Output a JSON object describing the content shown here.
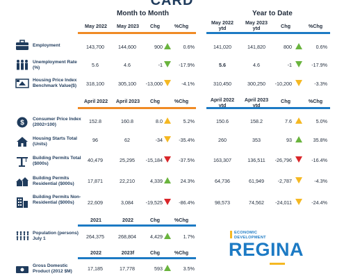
{
  "title": "CARD",
  "month_group": "Month to Month",
  "ytd_group": "Year to Date",
  "headers": {
    "month_sec1": [
      "May 2022",
      "May 2023",
      "Chg",
      "%Chg"
    ],
    "ytd_sec1": [
      "May 2022 ytd",
      "May 2023 ytd",
      "Chg",
      "%Chg"
    ],
    "month_sec2": [
      "April 2022",
      "April 2023",
      "Chg",
      "%Chg"
    ],
    "ytd_sec2": [
      "April 2022 ytd",
      "April 2023 ytd",
      "Chg",
      "%Chg"
    ],
    "sec3": [
      "2021",
      "2022",
      "Chg",
      "%Chg"
    ],
    "sec4": [
      "2022",
      "2023f",
      "Chg",
      "%Chg"
    ]
  },
  "rows": [
    {
      "label": "Employment",
      "icon": "briefcase-icon",
      "m": [
        "143,700",
        "144,600",
        "900",
        "0.6%"
      ],
      "m_trend": "up-green",
      "y": [
        "141,020",
        "141,820",
        "800",
        "0.6%"
      ],
      "y_trend": "up-green"
    },
    {
      "label": "Unemployment Rate (%)",
      "icon": "people-icon",
      "m": [
        "5.6",
        "4.6",
        "-1",
        "-17.9%"
      ],
      "m_trend": "down-green",
      "y": [
        "5.6",
        "4.6",
        "-1",
        "-17.9%"
      ],
      "y_trend": "down-green"
    },
    {
      "label": "Housing Price Index Benchmark Value($)",
      "icon": "house-price-icon",
      "m": [
        "318,100",
        "305,100",
        "-13,000",
        "-4.1%"
      ],
      "m_trend": "down-yellow",
      "y": [
        "310,450",
        "300,250",
        "-10,200",
        "-3.3%"
      ],
      "y_trend": "down-yellow"
    },
    {
      "label": "Consumer Price Index (2002=100)",
      "icon": "dollar-icon",
      "m": [
        "152.8",
        "160.8",
        "8.0",
        "5.2%"
      ],
      "m_trend": "up-yellow",
      "y": [
        "150.6",
        "158.2",
        "7.6",
        "5.0%"
      ],
      "y_trend": "up-yellow"
    },
    {
      "label": "Housing Starts Total (Units)",
      "icon": "house-icon",
      "m": [
        "96",
        "62",
        "-34",
        "-35.4%"
      ],
      "m_trend": "down-yellow",
      "y": [
        "260",
        "353",
        "93",
        "35.8%"
      ],
      "y_trend": "up-green"
    },
    {
      "label": "Building Permits Total ($000s)",
      "icon": "crane-icon",
      "m": [
        "40,479",
        "25,295",
        "-15,184",
        "-37.5%"
      ],
      "m_trend": "down-red",
      "y": [
        "163,307",
        "136,511",
        "-26,796",
        "-16.4%"
      ],
      "y_trend": "down-red"
    },
    {
      "label": "Building Permits Residential ($000s)",
      "icon": "homes-icon",
      "m": [
        "17,871",
        "22,210",
        "4,339",
        "24.3%"
      ],
      "m_trend": "up-green",
      "y": [
        "64,736",
        "61,949",
        "-2,787",
        "-4.3%"
      ],
      "y_trend": "down-yellow"
    },
    {
      "label": "Building Permits Non-Residential ($000s)",
      "icon": "office-building-icon",
      "m": [
        "22,609",
        "3,084",
        "-19,525",
        "-86.4%"
      ],
      "m_trend": "down-red",
      "y": [
        "98,573",
        "74,562",
        "-24,011",
        "-24.4%"
      ],
      "y_trend": "down-yellow"
    },
    {
      "label": "Population (persons) July 1",
      "icon": "population-icon",
      "m": [
        "264,375",
        "268,804",
        "4,429",
        "1.7%"
      ],
      "m_trend": "up-green"
    },
    {
      "label": "Gross Domestic Product (2012 $M)",
      "icon": "money-icon",
      "m": [
        "17,185",
        "17,778",
        "593",
        "3.5%"
      ],
      "m_trend": "up-green"
    }
  ],
  "logo": {
    "line1": "ECONOMIC",
    "line2": "DEVELOPMENT",
    "name": "REGINA"
  },
  "colors": {
    "orange": "#f08a24",
    "blue": "#1c7ac4",
    "green": "#6ab43e",
    "yellow": "#f5b822",
    "red": "#d9262a"
  }
}
